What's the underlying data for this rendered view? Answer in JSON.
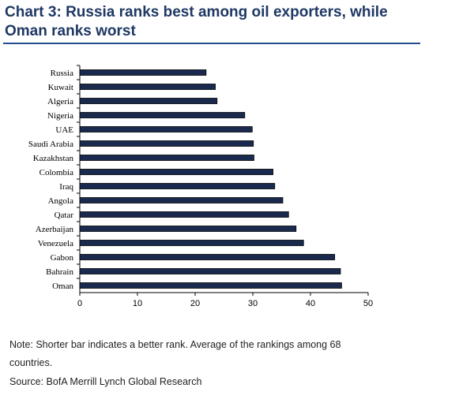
{
  "chart_data": {
    "type": "bar",
    "orientation": "horizontal",
    "title": "Chart 3: Russia ranks best among oil exporters, while Oman ranks worst",
    "categories": [
      "Russia",
      "Kuwait",
      "Algeria",
      "Nigeria",
      "UAE",
      "Saudi Arabia",
      "Kazakhstan",
      "Colombia",
      "Iraq",
      "Angola",
      "Qatar",
      "Azerbaijan",
      "Venezuela",
      "Gabon",
      "Bahrain",
      "Oman"
    ],
    "values": [
      21.9,
      23.5,
      23.8,
      28.6,
      29.9,
      30.1,
      30.2,
      33.5,
      33.8,
      35.2,
      36.2,
      37.5,
      38.8,
      44.2,
      45.2,
      45.4
    ],
    "xlim": [
      0,
      50
    ],
    "xticks": [
      "0",
      "10",
      "20",
      "30",
      "40",
      "50"
    ],
    "xlabel": "",
    "ylabel": "",
    "grid": false,
    "bar_color": "#1a2a4f"
  },
  "notes": {
    "line1": "Note: Shorter bar indicates a better rank. Average of the rankings among 68",
    "line2": "countries.",
    "source": "Source: BofA Merrill Lynch Global Research"
  }
}
